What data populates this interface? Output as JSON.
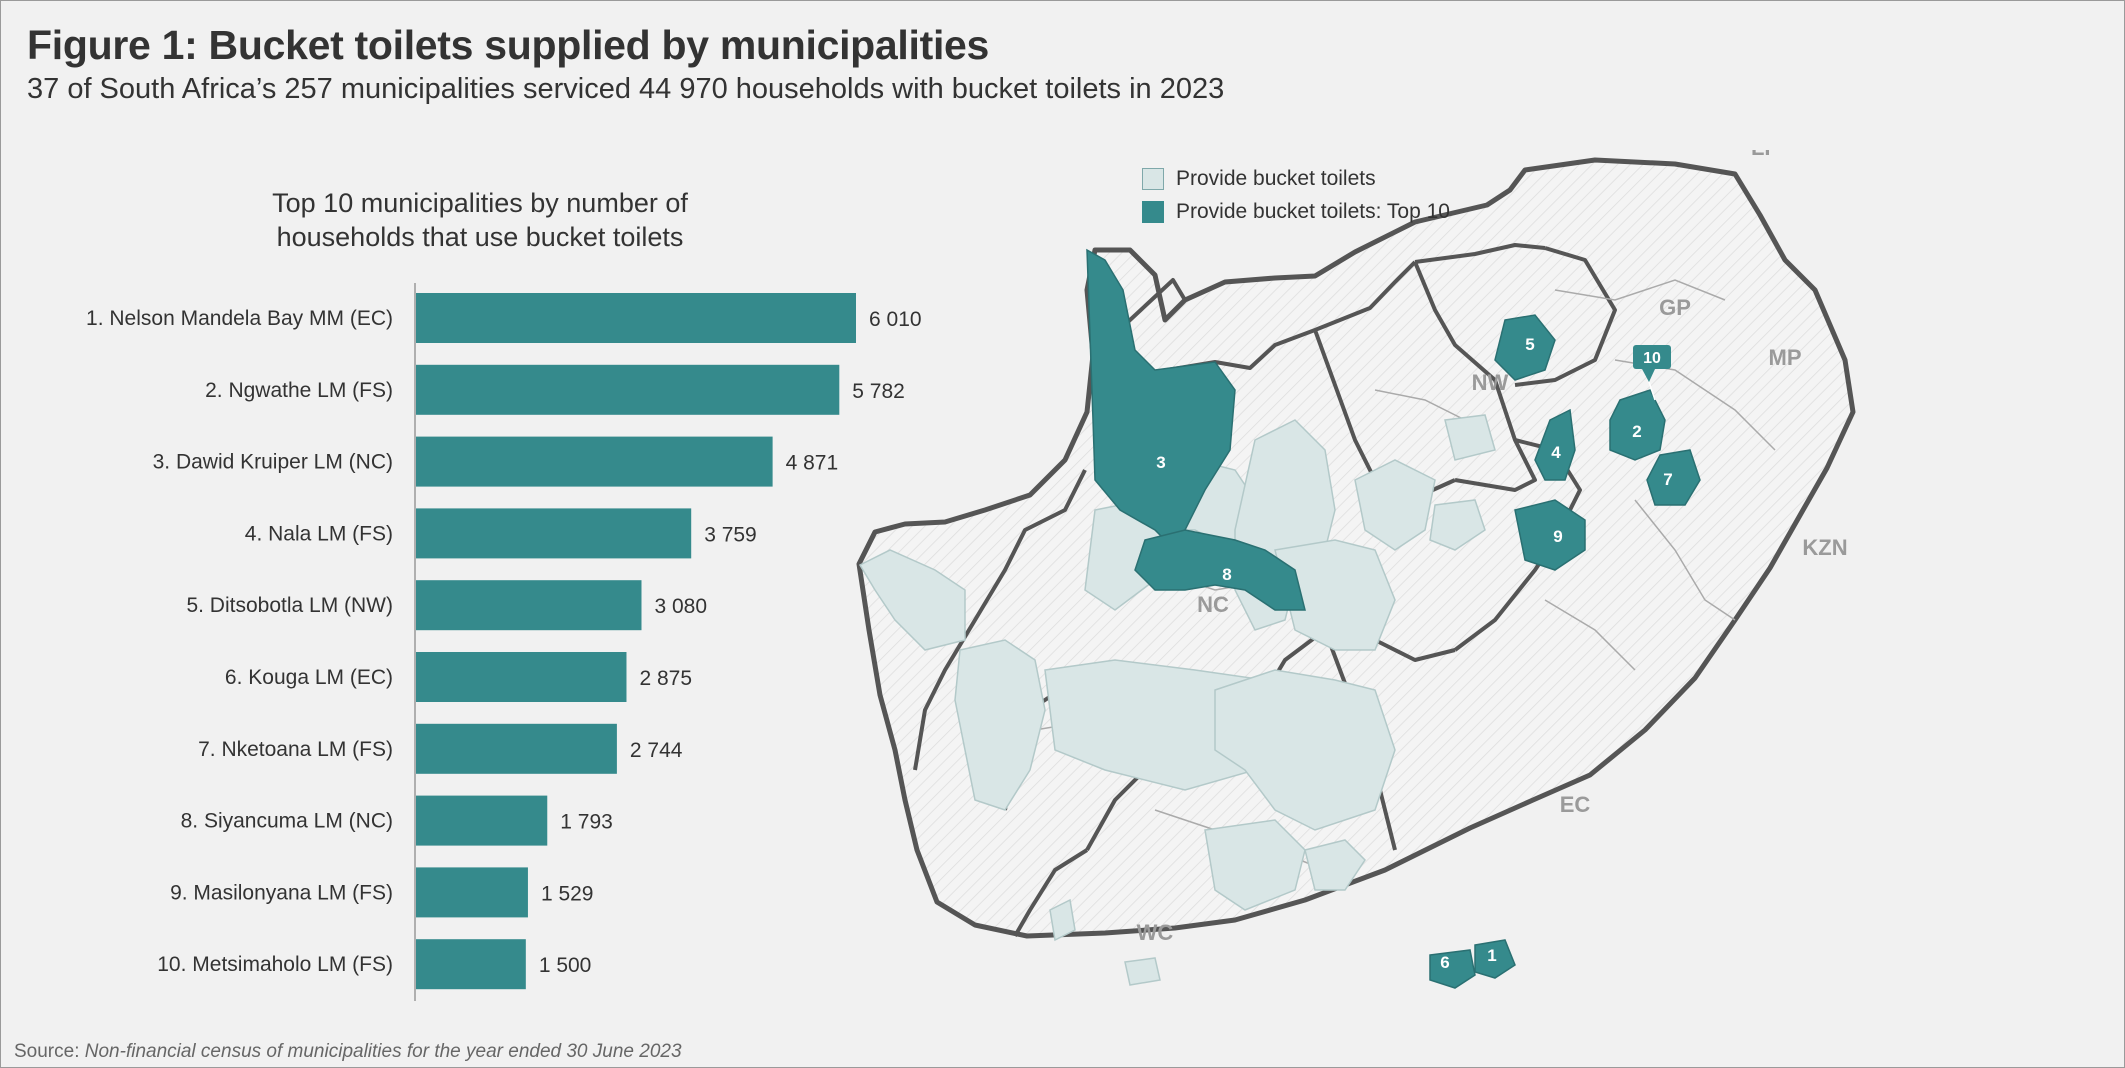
{
  "title": "Figure 1: Bucket toilets supplied by municipalities",
  "subtitle": "37 of South Africa’s 257 municipalities serviced 44 970 households with bucket toilets in 2023",
  "source_label": "Source: ",
  "source_text": "Non-financial census of municipalities for the year ended 30 June 2023",
  "colors": {
    "top10": "#358a8c",
    "provide": "#d9e6e6",
    "background": "#f1f1f1"
  },
  "legend": {
    "provide": "Provide bucket toilets",
    "top10": "Provide bucket toilets: Top 10"
  },
  "map": {
    "province_labels": [
      "LP",
      "GP",
      "MP",
      "NW",
      "KZN",
      "NC",
      "EC",
      "WC"
    ],
    "top10_numbers": [
      "1",
      "2",
      "3",
      "4",
      "5",
      "6",
      "7",
      "8",
      "9",
      "10"
    ]
  },
  "chart_data": {
    "type": "bar",
    "orientation": "horizontal",
    "title": "Top 10 municipalities by number of households that use bucket toilets",
    "title_lines": [
      "Top 10 municipalities by number of",
      "households that use bucket toilets"
    ],
    "categories": [
      "1. Nelson Mandela Bay MM  (EC)",
      "2. Ngwathe LM  (FS)",
      "3. Dawid Kruiper LM  (NC)",
      "4. Nala LM  (FS)",
      "5. Ditsobotla LM  (NW)",
      "6. Kouga LM  (EC)",
      "7. Nketoana LM  (FS)",
      "8. Siyancuma LM  (NC)",
      "9. Masilonyana LM  (FS)",
      "10. Metsimaholo LM  (FS)"
    ],
    "values": [
      6010,
      5782,
      4871,
      3759,
      3080,
      2875,
      2744,
      1793,
      1529,
      1500
    ],
    "value_labels": [
      "6 010",
      "5 782",
      "4 871",
      "3 759",
      "3 080",
      "2 875",
      "2 744",
      "1 793",
      "1 529",
      "1 500"
    ],
    "xlim": [
      0,
      6010
    ],
    "grid": false
  }
}
